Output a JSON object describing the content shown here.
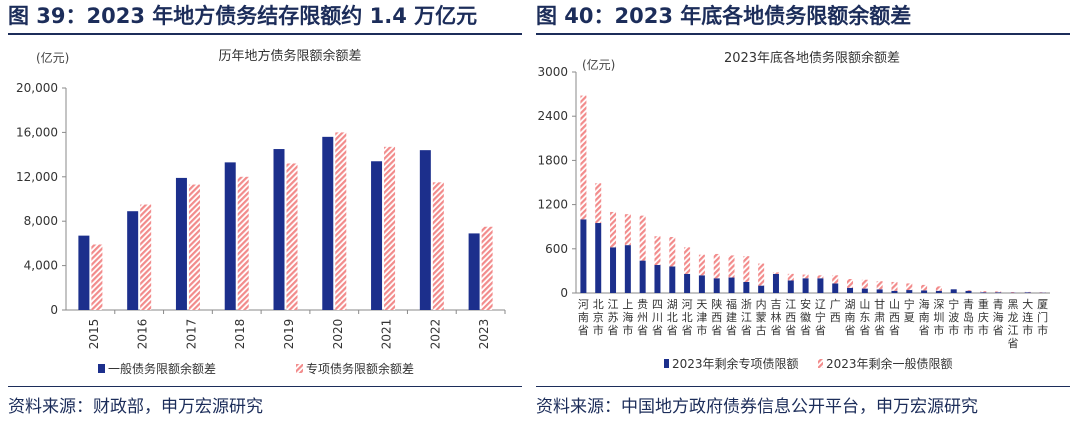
{
  "figures": [
    {
      "title": "图 39：2023 年地方债务结存限额约 1.4 万亿元",
      "source": "资料来源：财政部，申万宏源研究"
    },
    {
      "title": "图 40：2023 年底各地债务限额余额差",
      "source": "资料来源：中国地方政府债券信息公开平台，申万宏源研究"
    }
  ],
  "colors": {
    "series1": "#1c2f8c",
    "series2": "#f28b8b",
    "rule": "#1c2d5a"
  },
  "chart_data": [
    {
      "type": "bar",
      "title": "历年地方债务限额余额差",
      "ylabel": "(亿元)",
      "categories": [
        "2015",
        "2016",
        "2017",
        "2018",
        "2019",
        "2020",
        "2021",
        "2022",
        "2023"
      ],
      "yticks": [
        "0",
        "4,000",
        "8,000",
        "12,000",
        "16,000",
        "20,000"
      ],
      "ylim": [
        0,
        20000
      ],
      "series": [
        {
          "name": "一般债务限额余额差",
          "values": [
            6700,
            8900,
            11900,
            13300,
            14500,
            15600,
            13400,
            14400,
            6900
          ]
        },
        {
          "name": "专项债务限额余额差",
          "values": [
            5900,
            9500,
            11300,
            12000,
            13200,
            16000,
            14700,
            11500,
            7500
          ]
        }
      ],
      "legend": "bottom"
    },
    {
      "type": "bar",
      "stacked": true,
      "title": "2023年底各地债务限额余额差",
      "ylabel": "(亿元)",
      "categories": [
        "河南省",
        "北京市",
        "江苏省",
        "上海市",
        "贵州省",
        "四川省",
        "湖北省",
        "河北省",
        "天津市",
        "陕西省",
        "福建省",
        "浙江省",
        "内蒙古",
        "吉林省",
        "江西省",
        "安徽省",
        "辽宁省",
        "广西",
        "湖南省",
        "山东省",
        "甘肃省",
        "山西省",
        "宁夏",
        "海南省",
        "深圳市",
        "宁波市",
        "青岛市",
        "重庆市",
        "青海省",
        "黑龙江省",
        "大连市",
        "厦门市"
      ],
      "yticks": [
        "0",
        "600",
        "1200",
        "1800",
        "2400",
        "3000"
      ],
      "ylim": [
        0,
        3000
      ],
      "series": [
        {
          "name": "2023年剩余专项债限额",
          "values": [
            1000,
            950,
            620,
            650,
            440,
            380,
            360,
            260,
            240,
            200,
            210,
            150,
            100,
            260,
            170,
            200,
            200,
            130,
            70,
            60,
            50,
            30,
            40,
            35,
            30,
            50,
            30,
            10,
            10,
            5,
            10,
            5
          ]
        },
        {
          "name": "2023年剩余一般债限额",
          "values": [
            1680,
            540,
            480,
            420,
            610,
            390,
            400,
            360,
            280,
            330,
            300,
            350,
            300,
            20,
            90,
            50,
            40,
            110,
            120,
            120,
            110,
            120,
            90,
            75,
            60,
            0,
            10,
            15,
            12,
            8,
            5,
            5
          ]
        }
      ],
      "legend": "bottom"
    }
  ]
}
